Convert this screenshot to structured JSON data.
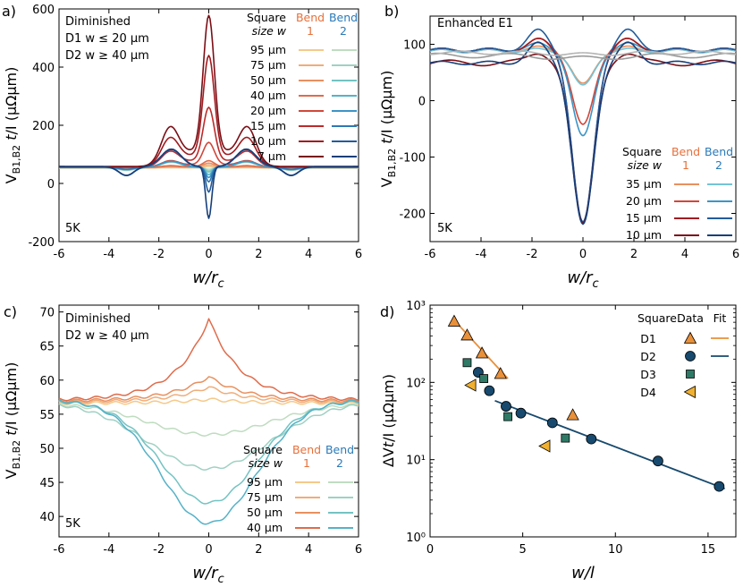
{
  "figure": {
    "panel_a": {
      "letter": "a)",
      "note_title": "Diminished",
      "note_line1": "D1 w ≤ 20 μm",
      "note_line2": "D2 w ≥ 40 μm",
      "temp": "5K",
      "xlabel": "w/rc",
      "ylabel": "VB1,B2 t/I (μΩμm)"
    },
    "panel_b": {
      "letter": "b)",
      "note_title": "Enhanced E1",
      "temp": "5K",
      "xlabel": "w/rc",
      "ylabel": "VB1,B2 t/I (μΩμm)"
    },
    "panel_c": {
      "letter": "c)",
      "note_title": "Diminished",
      "note_line1": "D2 w ≥ 40 μm",
      "temp": "5K",
      "xlabel": "w/rc",
      "ylabel": "VB1,B2 t/I (μΩμm)"
    },
    "panel_d": {
      "letter": "d)",
      "xlabel": "w/l",
      "ylabel": "ΔVt/I (μΩμm)"
    },
    "legend_common": {
      "square": "Square",
      "size_w": "size w",
      "bend": "Bend",
      "bend1": "1",
      "bend2": "2",
      "bend1_color": "#e8703a",
      "bend2_color": "#2a7ab8"
    },
    "legend_d": {
      "square": "Square",
      "data": "Data",
      "fit": "Fit"
    }
  },
  "chart_data": [
    {
      "id": "a",
      "type": "line",
      "xlim": [
        -6,
        6
      ],
      "ylim": [
        -200,
        600
      ],
      "xticks": [
        "-6",
        "-4",
        "-2",
        "0",
        "2",
        "4",
        "6"
      ],
      "yticks": [
        "-200",
        "0",
        "200",
        "400",
        "600"
      ],
      "series": [
        {
          "name": "95 μm",
          "bend1_color": "#f5c98a",
          "bend2_color": "#bfdcc0",
          "bend1_peak": 57,
          "bend2_dip": 49,
          "base": 53
        },
        {
          "name": "75 μm",
          "bend1_color": "#f0ad7a",
          "bend2_color": "#9fd1c3",
          "bend1_peak": 62,
          "bend2_dip": 44,
          "base": 54
        },
        {
          "name": "50 μm",
          "bend1_color": "#e8905f",
          "bend2_color": "#74c3c3",
          "bend1_peak": 68,
          "bend2_dip": 39,
          "base": 55
        },
        {
          "name": "40 μm",
          "bend1_color": "#df6c4b",
          "bend2_color": "#55b2c8",
          "bend1_peak": 75,
          "bend2_dip": 30,
          "base": 55
        },
        {
          "name": "20 μm",
          "bend1_color": "#d0473a",
          "bend2_color": "#3c95c6",
          "bend1_peak": 130,
          "bend2_dip": 20,
          "base": 56
        },
        {
          "name": "15 μm",
          "bend1_color": "#bd2b2b",
          "bend2_color": "#2e78b5",
          "bend1_peak": 235,
          "bend2_dip": 5,
          "base": 57
        },
        {
          "name": "10 μm",
          "bend1_color": "#a01c20",
          "bend2_color": "#225c9c",
          "bend1_peak": 390,
          "bend2_dip": -30,
          "base": 57
        },
        {
          "name": "7 μm",
          "bend1_color": "#7a0f16",
          "bend2_color": "#163f7a",
          "bend1_peak": 510,
          "bend2_dip": -120,
          "base": 58
        }
      ]
    },
    {
      "id": "b",
      "type": "line",
      "xlim": [
        -6,
        6
      ],
      "ylim": [
        -250,
        150
      ],
      "xticks": [
        "-6",
        "-4",
        "-2",
        "0",
        "2",
        "4",
        "6"
      ],
      "yticks": [
        "-200",
        "-100",
        "0",
        "100"
      ],
      "series": [
        {
          "name": "35 μm",
          "bend1_color": "#e8905f",
          "bend2_color": "#74c3d6",
          "bend1_center": 28,
          "bend2_center": 25,
          "base": 88
        },
        {
          "name": "20 μm",
          "bend1_color": "#d0473a",
          "bend2_color": "#3c95c6",
          "bend1_center": -45,
          "bend2_center": -65,
          "base": 90
        },
        {
          "name": "15 μm",
          "bend1_color": "#a01c20",
          "bend2_color": "#225c9c",
          "bend1_center": -220,
          "bend2_center": -218,
          "base": 90
        },
        {
          "name": "10 μm",
          "bend1_color": "#7a0f16",
          "bend2_color": "#163f7a",
          "bend1_center": -222,
          "bend2_center": -222,
          "base": 67
        }
      ]
    },
    {
      "id": "c",
      "type": "line",
      "xlim": [
        -6,
        6
      ],
      "ylim": [
        37,
        71
      ],
      "xticks": [
        "-6",
        "-4",
        "-2",
        "0",
        "2",
        "4",
        "6"
      ],
      "yticks": [
        "40",
        "45",
        "50",
        "55",
        "60",
        "65",
        "70"
      ],
      "series": [
        {
          "name": "95 μm",
          "bend1_color": "#f5c98a",
          "bend2_color": "#bfdcc0",
          "bend1_center": 57.2,
          "bend2_center": 52.0
        },
        {
          "name": "75 μm",
          "bend1_color": "#f0ad7a",
          "bend2_color": "#9fd1c3",
          "bend1_center": 59.0,
          "bend2_center": 47.0
        },
        {
          "name": "50 μm",
          "bend1_color": "#e8905f",
          "bend2_color": "#74c3c3",
          "bend1_center": 60.5,
          "bend2_center": 42.0
        },
        {
          "name": "40 μm",
          "bend1_color": "#df6c4b",
          "bend2_color": "#55b2c8",
          "bend1_center": 69.0,
          "bend2_center": 39.0
        }
      ]
    },
    {
      "id": "d",
      "type": "scatter",
      "xlim": [
        0,
        16.5
      ],
      "ylim_log": [
        1,
        1000
      ],
      "xticks": [
        "0",
        "5",
        "10",
        "15"
      ],
      "yticks": [
        "10⁰",
        "10¹",
        "10²",
        "10³"
      ],
      "series": [
        {
          "name": "D1",
          "marker": "triangle-up",
          "color": "#e8903a",
          "x": [
            1.3,
            2.0,
            2.8,
            3.8
          ],
          "y": [
            620,
            410,
            240,
            130
          ],
          "fit": {
            "x": [
              1.2,
              4.2
            ],
            "y": [
              680,
              112
            ]
          }
        },
        {
          "name": "D2",
          "marker": "circle",
          "color": "#174a6e",
          "x": [
            2.6,
            3.2,
            4.1,
            4.9,
            6.6,
            8.7,
            12.3,
            15.6
          ],
          "y": [
            135,
            78,
            49,
            40,
            30,
            18.5,
            9.6,
            4.5
          ],
          "fit": {
            "x": [
              3.5,
              15.9
            ],
            "y": [
              58,
              4.2
            ]
          }
        },
        {
          "name": "D3",
          "marker": "square",
          "color": "#2e7a66",
          "x": [
            2.0,
            2.9,
            4.2,
            7.3
          ],
          "y": [
            180,
            112,
            36,
            19
          ]
        },
        {
          "name": "D4",
          "marker": "triangle-left",
          "color": "#f0b030",
          "x": [
            2.2,
            6.2
          ],
          "y": [
            92,
            15
          ]
        }
      ],
      "extra_points": [
        {
          "series": "D1",
          "x": 7.7,
          "y": 38
        }
      ]
    }
  ]
}
